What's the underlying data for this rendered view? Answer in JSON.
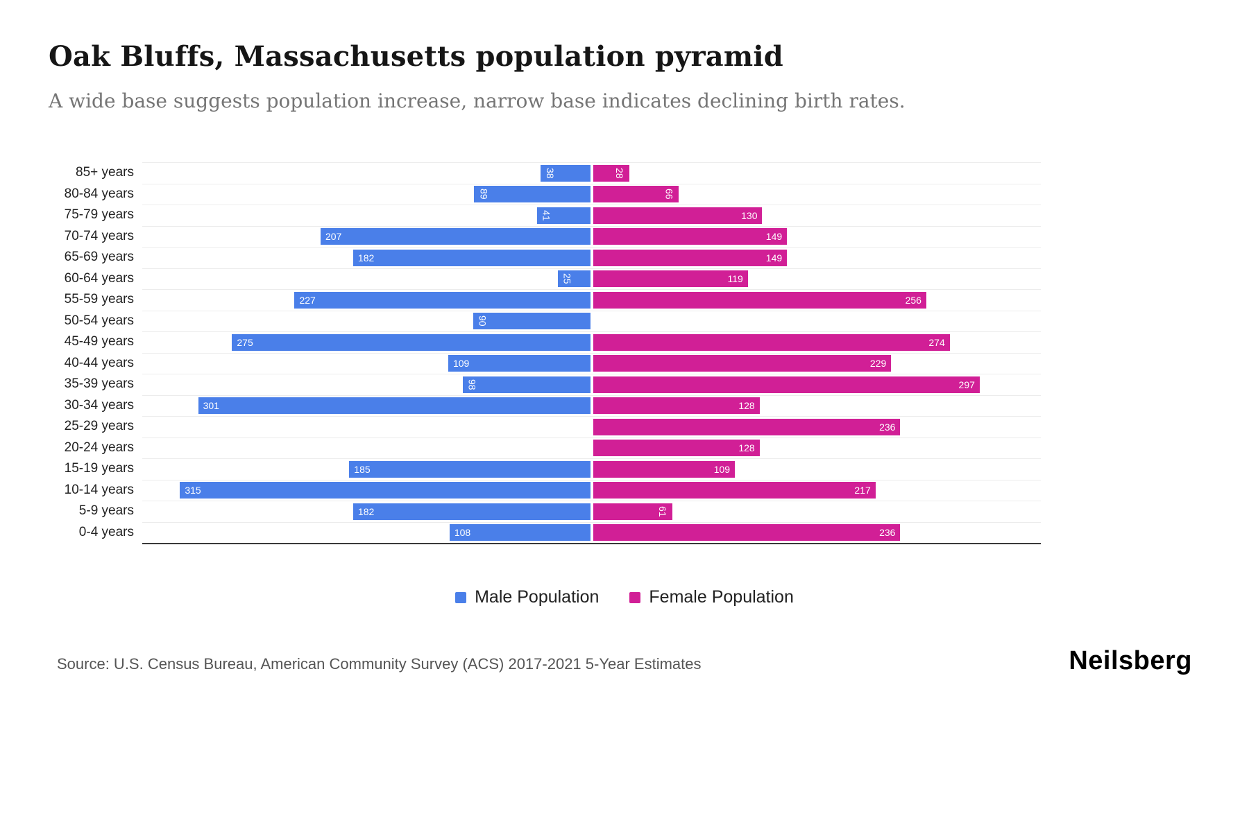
{
  "header": {
    "title": "Oak Bluffs, Massachusetts population pyramid",
    "subtitle": "A wide base suggests population increase, narrow base indicates declining birth rates."
  },
  "chart_data": {
    "type": "bar",
    "variant": "population-pyramid",
    "title": "Oak Bluffs, Massachusetts population pyramid",
    "categories": [
      "85+ years",
      "80-84 years",
      "75-79 years",
      "70-74 years",
      "65-69 years",
      "60-64 years",
      "55-59 years",
      "50-54 years",
      "45-49 years",
      "40-44 years",
      "35-39 years",
      "30-34 years",
      "25-29 years",
      "20-24 years",
      "15-19 years",
      "10-14 years",
      "5-9 years",
      "0-4 years"
    ],
    "series": [
      {
        "name": "Male Population",
        "color": "#4A7FE9",
        "values": [
          38,
          89,
          41,
          207,
          182,
          25,
          227,
          90,
          275,
          109,
          98,
          301,
          0,
          0,
          185,
          315,
          182,
          108
        ]
      },
      {
        "name": "Female Population",
        "color": "#D11F96",
        "values": [
          28,
          66,
          130,
          149,
          149,
          119,
          256,
          0,
          274,
          229,
          297,
          128,
          236,
          128,
          109,
          217,
          61,
          236
        ]
      }
    ],
    "axis_max": 345,
    "rotate_label_below": 100,
    "grid": "horizontal-light",
    "legend_position": "bottom-center"
  },
  "footer": {
    "source": "Source: U.S. Census Bureau, American Community Survey (ACS) 2017-2021 5-Year Estimates",
    "logo": "Neilsberg"
  }
}
